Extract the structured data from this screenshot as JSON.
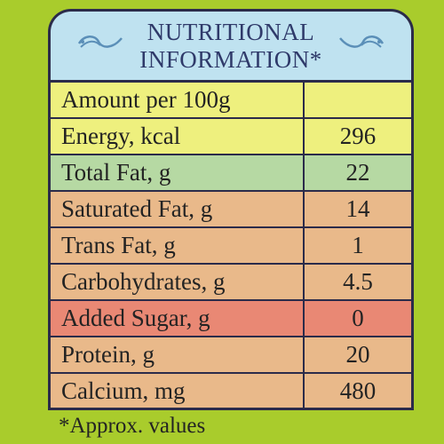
{
  "header": {
    "title_line1": "NUTRITIONAL",
    "title_line2": "INFORMATION*"
  },
  "colors": {
    "background": "#a9cc2c",
    "header_bg": "#bfe2f0",
    "yellow": "#eef07e",
    "green": "#b6d9a3",
    "orange": "#e9b98a",
    "red": "#e98874",
    "border": "#2b2b4a"
  },
  "rows": [
    {
      "label": "Amount per 100g",
      "value": "",
      "color": "#eef07e"
    },
    {
      "label": "Energy, kcal",
      "value": "296",
      "color": "#eef07e"
    },
    {
      "label": "Total Fat, g",
      "value": "22",
      "color": "#b6d9a3"
    },
    {
      "label": "Saturated Fat, g",
      "value": "14",
      "color": "#e9b98a"
    },
    {
      "label": "Trans Fat, g",
      "value": "1",
      "color": "#e9b98a"
    },
    {
      "label": "Carbohydrates, g",
      "value": "4.5",
      "color": "#e9b98a"
    },
    {
      "label": "Added Sugar, g",
      "value": "0",
      "color": "#e98874"
    },
    {
      "label": "Protein, g",
      "value": "20",
      "color": "#e9b98a"
    },
    {
      "label": "Calcium, mg",
      "value": "480",
      "color": "#e9b98a"
    }
  ],
  "footnote": "*Approx. values"
}
